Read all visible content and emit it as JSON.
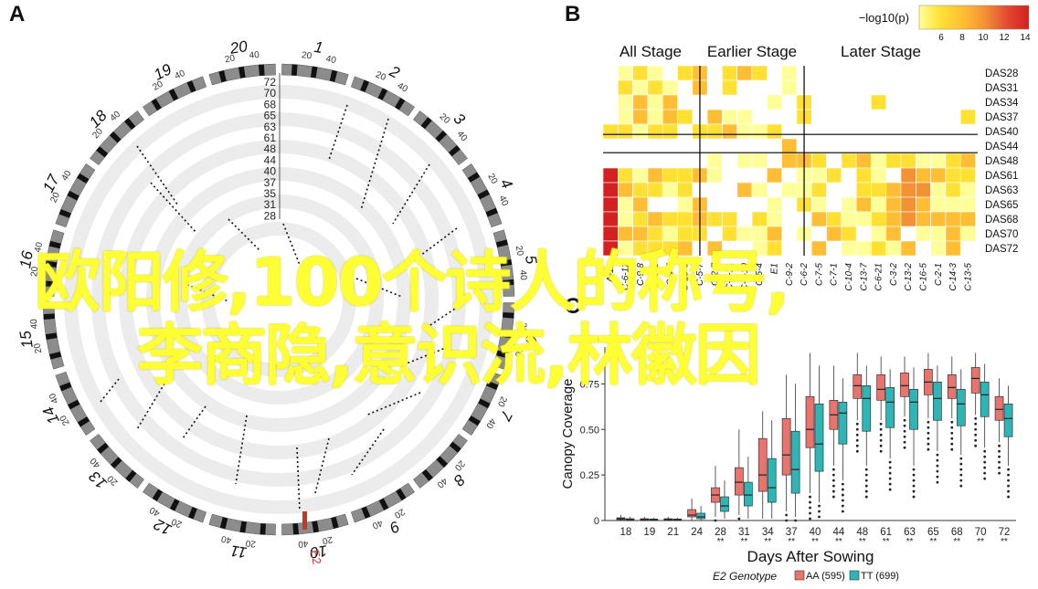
{
  "panels": {
    "a": "A",
    "b": "B",
    "c": "C"
  },
  "overlay": {
    "line1": "欧阳修,100个诗人的称号,",
    "line2": "李商隐,意识流,林徽因"
  },
  "panel_a": {
    "chromosomes": [
      "1",
      "2",
      "3",
      "4",
      "5",
      "6",
      "7",
      "8",
      "9",
      "10",
      "11",
      "12",
      "13",
      "14",
      "15",
      "16",
      "17",
      "18",
      "19",
      "20"
    ],
    "ring_ticks": [
      "20",
      "40"
    ],
    "radial_labels": [
      "72",
      "70",
      "68",
      "65",
      "63",
      "61",
      "48",
      "44",
      "40",
      "37",
      "35",
      "31",
      "28"
    ],
    "marker_label": "E2"
  },
  "panel_b": {
    "legend_title": "−log10(p)",
    "legend_ticks": [
      "6",
      "8",
      "10",
      "12",
      "14"
    ],
    "stage_labels": [
      "All Stage",
      "Earlier Stage",
      "Later Stage"
    ],
    "rows": [
      "DAS28",
      "DAS31",
      "DAS34",
      "DAS37",
      "DAS40",
      "DAS44",
      "DAS48",
      "DAS61",
      "DAS63",
      "DAS65",
      "DAS68",
      "DAS70",
      "DAS72"
    ],
    "columns": [
      "A-12",
      "C-6-11",
      "C-9-8",
      "C-9-6",
      "C-4-5",
      "C-10-6",
      "C-5-7",
      "C-2-7",
      "C-4-11",
      "C-8-10",
      "C-5-4",
      "E1",
      "C-9-2",
      "C-6-2",
      "C-7-5",
      "C-7-1",
      "C-10-4",
      "C-13-7",
      "C-6-21",
      "C-3-2",
      "C-13-2",
      "C-16-5",
      "C-2-1",
      "C-14-3",
      "C-13-5"
    ],
    "colors": [
      "#ffff99",
      "#ffe033",
      "#ffbe33",
      "#f39233",
      "#e34a33",
      "#d42020"
    ]
  },
  "chart_data": {
    "type": "box",
    "title": "",
    "xlabel": "Days After Sowing",
    "ylabel": "Canopy Coverage",
    "ylim": [
      0,
      1.0
    ],
    "yticks": [
      0,
      0.25,
      0.5,
      0.75
    ],
    "ytick_labels": [
      "0",
      "0.25",
      "0.50",
      "0.75"
    ],
    "categories": [
      "18",
      "19",
      "21",
      "24",
      "28",
      "31",
      "34",
      "37",
      "40",
      "44",
      "48",
      "61",
      "63",
      "65",
      "68",
      "70",
      "72"
    ],
    "significance": [
      "",
      "",
      "",
      "",
      "**",
      "**",
      "**",
      "**",
      "**",
      "**",
      "**",
      "**",
      "**",
      "**",
      "**",
      "**",
      "**"
    ],
    "legend_title": "E2 Genotype",
    "series": [
      {
        "name": "AA (595)",
        "color": "#e8746d",
        "median": [
          0.01,
          0.005,
          0.005,
          0.03,
          0.14,
          0.21,
          0.25,
          0.36,
          0.5,
          0.58,
          0.74,
          0.72,
          0.74,
          0.76,
          0.73,
          0.78,
          0.61
        ],
        "q1": [
          0.005,
          0.003,
          0.003,
          0.02,
          0.1,
          0.14,
          0.16,
          0.25,
          0.4,
          0.5,
          0.67,
          0.66,
          0.68,
          0.69,
          0.67,
          0.7,
          0.55
        ],
        "q3": [
          0.015,
          0.01,
          0.01,
          0.06,
          0.18,
          0.29,
          0.45,
          0.56,
          0.68,
          0.66,
          0.8,
          0.8,
          0.81,
          0.83,
          0.8,
          0.84,
          0.68
        ],
        "whisker_low": [
          0,
          0,
          0,
          0,
          0.02,
          0.03,
          0.01,
          0.05,
          0.15,
          0.3,
          0.55,
          0.55,
          0.57,
          0.56,
          0.56,
          0.58,
          0.43
        ],
        "whisker_high": [
          0.03,
          0.02,
          0.02,
          0.12,
          0.3,
          0.5,
          0.6,
          0.8,
          0.92,
          0.85,
          0.92,
          0.9,
          0.9,
          0.92,
          0.9,
          0.92,
          0.78
        ]
      },
      {
        "name": "TT (699)",
        "color": "#2fb5b5",
        "median": [
          0.005,
          0.004,
          0.004,
          0.02,
          0.08,
          0.14,
          0.18,
          0.28,
          0.42,
          0.59,
          0.67,
          0.65,
          0.65,
          0.67,
          0.64,
          0.69,
          0.56
        ],
        "q1": [
          0.002,
          0.002,
          0.002,
          0.01,
          0.05,
          0.08,
          0.1,
          0.15,
          0.27,
          0.42,
          0.49,
          0.51,
          0.5,
          0.55,
          0.52,
          0.57,
          0.46
        ],
        "q3": [
          0.01,
          0.008,
          0.008,
          0.04,
          0.13,
          0.21,
          0.34,
          0.49,
          0.64,
          0.65,
          0.74,
          0.73,
          0.72,
          0.76,
          0.72,
          0.76,
          0.64
        ],
        "whisker_low": [
          0,
          0,
          0,
          0,
          0.01,
          0.01,
          0.01,
          0.02,
          0.1,
          0.22,
          0.3,
          0.34,
          0.3,
          0.38,
          0.36,
          0.4,
          0.3
        ],
        "whisker_high": [
          0.02,
          0.015,
          0.015,
          0.08,
          0.22,
          0.35,
          0.55,
          0.75,
          0.85,
          0.78,
          0.85,
          0.83,
          0.84,
          0.85,
          0.83,
          0.86,
          0.74
        ]
      }
    ]
  }
}
